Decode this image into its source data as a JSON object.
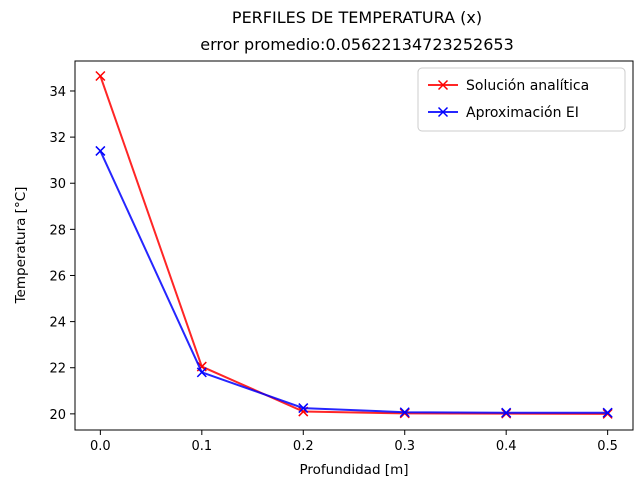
{
  "chart_data": {
    "type": "line",
    "title": "PERFILES DE TEMPERATURA (x)",
    "subtitle": "error promedio:0.05622134723252653",
    "xlabel": "Profundidad [m]",
    "ylabel": "Temperatura [°C]",
    "x": [
      0.0,
      0.1,
      0.2,
      0.3,
      0.4,
      0.5
    ],
    "xlim": [
      -0.025,
      0.525
    ],
    "ylim": [
      19.3,
      35.3
    ],
    "xticks": [
      0.0,
      0.1,
      0.2,
      0.3,
      0.4,
      0.5
    ],
    "xtick_labels": [
      "0.0",
      "0.1",
      "0.2",
      "0.3",
      "0.4",
      "0.5"
    ],
    "yticks": [
      20,
      22,
      24,
      26,
      28,
      30,
      32,
      34
    ],
    "ytick_labels": [
      "20",
      "22",
      "24",
      "26",
      "28",
      "30",
      "32",
      "34"
    ],
    "grid": false,
    "legend_position": "top-right",
    "series": [
      {
        "name": "Solución analítica",
        "color": "#ff0000",
        "marker": "x",
        "values": [
          34.65,
          22.05,
          20.1,
          20.02,
          20.01,
          20.0
        ]
      },
      {
        "name": "Aproximación EI",
        "color": "#0000ff",
        "marker": "x",
        "values": [
          31.4,
          21.8,
          20.25,
          20.07,
          20.05,
          20.05
        ]
      }
    ]
  }
}
